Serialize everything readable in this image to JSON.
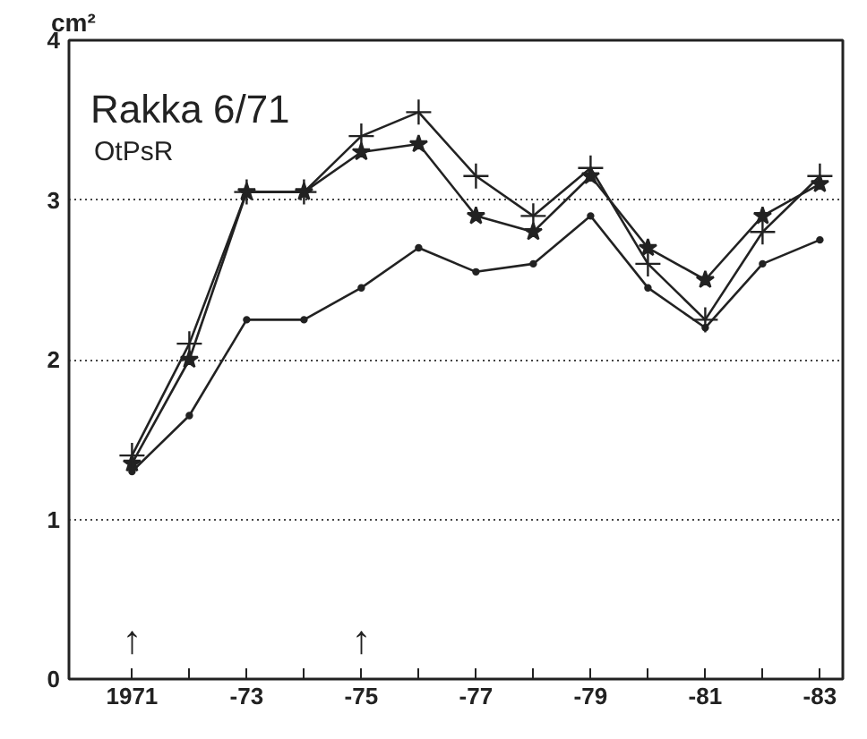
{
  "chart_data": {
    "type": "line",
    "title": "Rakka 6/71",
    "subtitle": "OtPsR",
    "ylabel": "cm²",
    "categories": [
      "1971",
      null,
      "-73",
      null,
      "-75",
      null,
      "-77",
      null,
      "-79",
      null,
      "-81",
      null,
      "-83"
    ],
    "series": [
      {
        "color": "#222222",
        "marker": "cross",
        "values": [
          1.4,
          2.1,
          3.05,
          3.05,
          3.4,
          3.55,
          3.15,
          2.9,
          3.2,
          2.6,
          2.25,
          2.8,
          3.15
        ]
      },
      {
        "color": "#222222",
        "marker": "star",
        "values": [
          1.35,
          2.0,
          3.05,
          3.05,
          3.3,
          3.35,
          2.9,
          2.8,
          3.15,
          2.7,
          2.5,
          2.9,
          3.1
        ]
      },
      {
        "color": "#222222",
        "marker": "circle",
        "values": [
          1.3,
          1.65,
          2.25,
          2.25,
          2.45,
          2.7,
          2.55,
          2.6,
          2.9,
          2.45,
          2.2,
          2.6,
          2.75
        ]
      }
    ],
    "annotations": [
      {
        "text": "↑",
        "x": "1971"
      },
      {
        "text": "↑",
        "x": "-75"
      }
    ],
    "ylim": [
      0,
      4
    ],
    "yticks": [
      0,
      1,
      2,
      3,
      4
    ],
    "grid": "y",
    "line_style": "solid"
  }
}
